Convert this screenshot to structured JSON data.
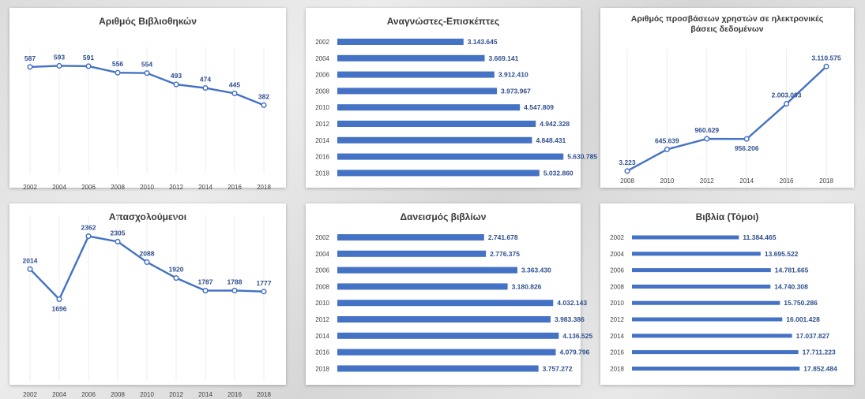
{
  "accent_color": "#4472c4",
  "label_color": "#2f4f8f",
  "chart_data": [
    {
      "id": "libraries",
      "type": "line",
      "title": "Αριθμός Βιβλιοθηκών",
      "categories": [
        "2002",
        "2004",
        "2006",
        "2008",
        "2010",
        "2012",
        "2014",
        "2016",
        "2018"
      ],
      "values": [
        587,
        593,
        591,
        556,
        554,
        493,
        474,
        445,
        382
      ],
      "labels": [
        "587",
        "593",
        "591",
        "556",
        "554",
        "493",
        "474",
        "445",
        "382"
      ],
      "ylim": [
        100,
        650
      ],
      "grid": true
    },
    {
      "id": "readers",
      "type": "bar",
      "orientation": "horizontal",
      "title": "Αναγνώστες-Επισκέπτες",
      "categories": [
        "2002",
        "2004",
        "2006",
        "2008",
        "2010",
        "2012",
        "2014",
        "2016",
        "2018"
      ],
      "values": [
        3143645,
        3669141,
        3912410,
        3973967,
        4547809,
        4942328,
        4848431,
        5630785,
        5032860
      ],
      "labels": [
        "3.143.645",
        "3.669.141",
        "3.912.410",
        "3.973.967",
        "4.547.809",
        "4.942.328",
        "4.848.431",
        "5.630.785",
        "5.032.860"
      ],
      "xlim": [
        0,
        6000000
      ]
    },
    {
      "id": "db-access",
      "type": "line",
      "title": "Αριθμός προσβάσεων χρηστών σε ηλεκτρονικές βάσεις δεδομένων",
      "title_lines": [
        "Αριθμός προσβάσεων χρηστών σε ηλεκτρονικές",
        "βάσεις δεδομένων"
      ],
      "categories": [
        "2008",
        "2010",
        "2012",
        "2014",
        "2016",
        "2018"
      ],
      "values": [
        3223,
        645639,
        960629,
        956206,
        2003093,
        3110575
      ],
      "labels": [
        "3.223",
        "645.639",
        "960.629",
        "956.206",
        "2.003.093",
        "3.110.575"
      ],
      "ylim": [
        0,
        3400000
      ],
      "grid": true
    },
    {
      "id": "employees",
      "type": "line",
      "title": "Απασχολούμενοι",
      "categories": [
        "2002",
        "2004",
        "2006",
        "2008",
        "2010",
        "2012",
        "2014",
        "2016",
        "2018"
      ],
      "values": [
        2014,
        1696,
        2362,
        2305,
        2088,
        1920,
        1787,
        1788,
        1777
      ],
      "labels": [
        "2014",
        "1696",
        "2362",
        "2305",
        "2088",
        "1920",
        "1787",
        "1788",
        "1777"
      ],
      "ylim": [
        1000,
        2500
      ],
      "grid": true
    },
    {
      "id": "loans",
      "type": "bar",
      "orientation": "horizontal",
      "title": "Δανεισμός βιβλίων",
      "categories": [
        "2002",
        "2004",
        "2006",
        "2008",
        "2010",
        "2012",
        "2014",
        "2016",
        "2018"
      ],
      "values": [
        2741678,
        2776375,
        3363430,
        3180826,
        4032143,
        3983386,
        4136525,
        4079796,
        3757272
      ],
      "labels": [
        "2.741.678",
        "2.776.375",
        "3.363.430",
        "3.180.826",
        "4.032.143",
        "3.983.386",
        "4.136.525",
        "4.079.796",
        "3.757.272"
      ],
      "xlim": [
        0,
        4500000
      ]
    },
    {
      "id": "books",
      "type": "bar",
      "orientation": "horizontal",
      "title": "Βιβλία (Τόμοι)",
      "categories": [
        "2002",
        "2004",
        "2006",
        "2008",
        "2010",
        "2012",
        "2014",
        "2016",
        "2018"
      ],
      "values": [
        11384465,
        13695522,
        14781665,
        14740308,
        15750286,
        16001428,
        17037827,
        17711223,
        17852484
      ],
      "labels": [
        "11.384.465",
        "13.695.522",
        "14.781.665",
        "14.740.308",
        "15.750.286",
        "16.001.428",
        "17.037.827",
        "17.711.223",
        "17.852.484"
      ],
      "xlim": [
        0,
        18500000
      ]
    }
  ]
}
